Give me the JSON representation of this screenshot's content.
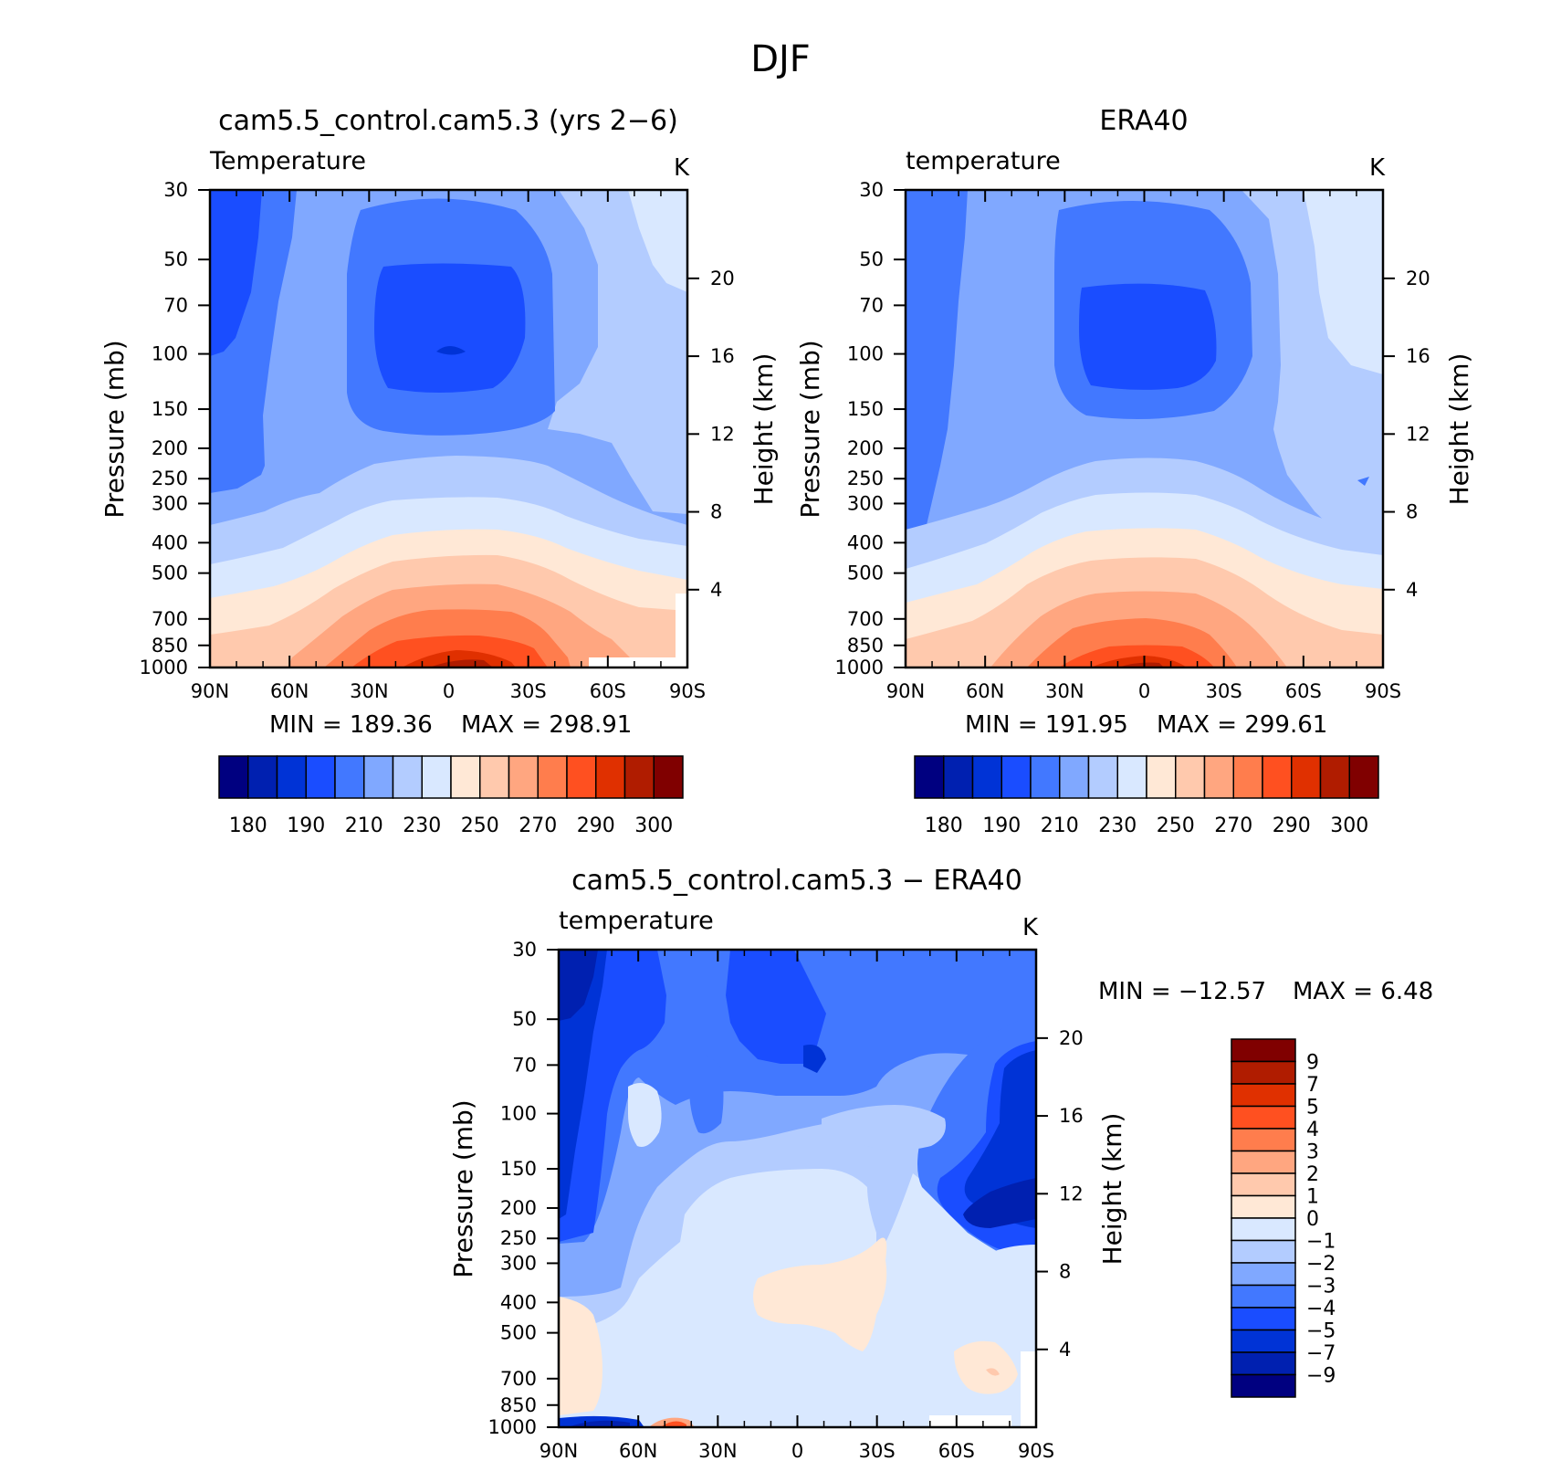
{
  "figure": {
    "title": "DJF"
  },
  "chart_data": [
    {
      "type": "heatmap",
      "title": "cam5.5_control.cam5.3 (yrs 2−6)",
      "variable": "Temperature",
      "units": "K",
      "ylabel": "Pressure (mb)",
      "y2label": "Height (km)",
      "x_ticks": [
        "90N",
        "60N",
        "30N",
        "0",
        "30S",
        "60S",
        "90S"
      ],
      "y_ticks": [
        30,
        50,
        70,
        100,
        150,
        200,
        250,
        300,
        400,
        500,
        700,
        850,
        1000
      ],
      "y2_ticks": [
        20,
        16,
        12,
        8,
        4
      ],
      "min_label": "MIN = 189.36",
      "max_label": "MAX = 298.91",
      "min": 189.36,
      "max": 298.91,
      "colorbar_ticks": [
        "180",
        "190",
        "210",
        "230",
        "250",
        "270",
        "290",
        "300"
      ],
      "colors": [
        "#000080",
        "#0020b0",
        "#0033d6",
        "#1a4dff",
        "#4278ff",
        "#80a8ff",
        "#b3ccff",
        "#d9e8ff",
        "#ffe8d6",
        "#ffc9ad",
        "#ffa680",
        "#ff7d4d",
        "#ff5020",
        "#e03000",
        "#b01c00",
        "#800000"
      ]
    },
    {
      "type": "heatmap",
      "title": "ERA40",
      "variable": "temperature",
      "units": "K",
      "ylabel": "Pressure (mb)",
      "y2label": "Height (km)",
      "x_ticks": [
        "90N",
        "60N",
        "30N",
        "0",
        "30S",
        "60S",
        "90S"
      ],
      "y_ticks": [
        30,
        50,
        70,
        100,
        150,
        200,
        250,
        300,
        400,
        500,
        700,
        850,
        1000
      ],
      "y2_ticks": [
        20,
        16,
        12,
        8,
        4
      ],
      "min_label": "MIN = 191.95",
      "max_label": "MAX = 299.61",
      "min": 191.95,
      "max": 299.61,
      "colorbar_ticks": [
        "180",
        "190",
        "210",
        "230",
        "250",
        "270",
        "290",
        "300"
      ],
      "colors": [
        "#000080",
        "#0020b0",
        "#0033d6",
        "#1a4dff",
        "#4278ff",
        "#80a8ff",
        "#b3ccff",
        "#d9e8ff",
        "#ffe8d6",
        "#ffc9ad",
        "#ffa680",
        "#ff7d4d",
        "#ff5020",
        "#e03000",
        "#b01c00",
        "#800000"
      ]
    },
    {
      "type": "heatmap",
      "title": "cam5.5_control.cam5.3 − ERA40",
      "variable": "temperature",
      "units": "K",
      "ylabel": "Pressure (mb)",
      "y2label": "Height (km)",
      "x_ticks": [
        "90N",
        "60N",
        "30N",
        "0",
        "30S",
        "60S",
        "90S"
      ],
      "y_ticks": [
        30,
        50,
        70,
        100,
        150,
        200,
        250,
        300,
        400,
        500,
        700,
        850,
        1000
      ],
      "y2_ticks": [
        20,
        16,
        12,
        8,
        4
      ],
      "min_label": "MIN = −12.57",
      "max_label": "MAX =    6.48",
      "min": -12.57,
      "max": 6.48,
      "colorbar_ticks": [
        "9",
        "7",
        "5",
        "4",
        "3",
        "2",
        "1",
        "0",
        "−1",
        "−2",
        "−3",
        "−4",
        "−5",
        "−7",
        "−9"
      ],
      "colors": [
        "#800000",
        "#b01c00",
        "#e03000",
        "#ff5020",
        "#ff7d4d",
        "#ffa680",
        "#ffc9ad",
        "#ffe8d6",
        "#d9e8ff",
        "#b3ccff",
        "#80a8ff",
        "#4278ff",
        "#1a4dff",
        "#0033d6",
        "#0020b0",
        "#000080"
      ]
    }
  ]
}
